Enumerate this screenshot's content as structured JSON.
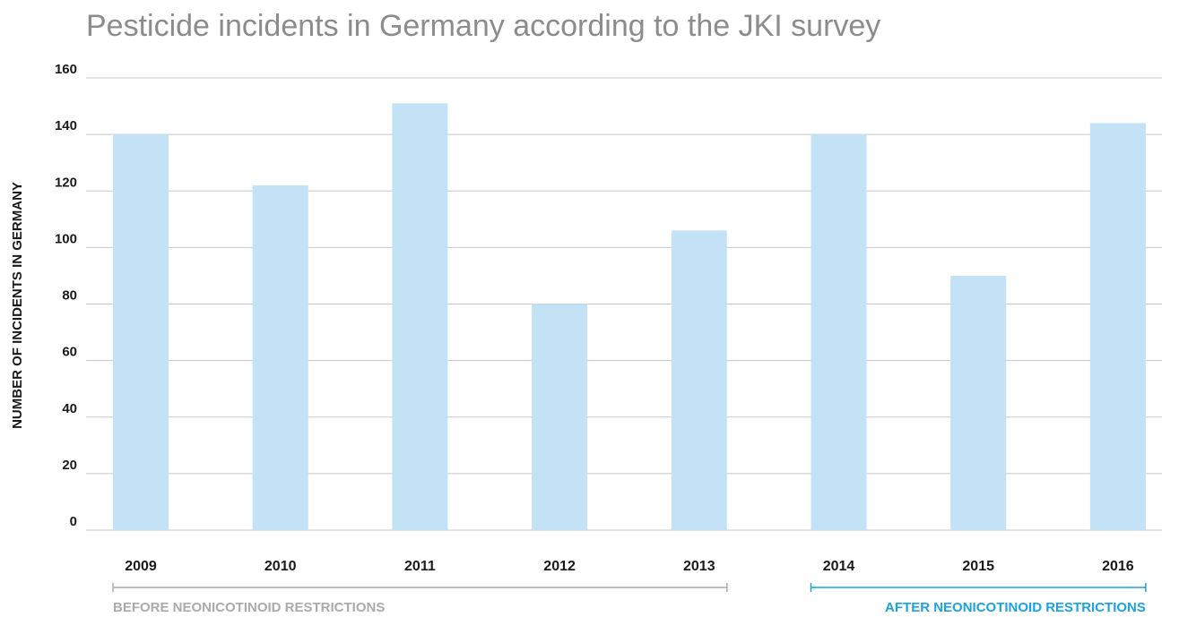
{
  "chart_data": {
    "type": "bar",
    "title": "Pesticide incidents in Germany according to the JKI survey",
    "xlabel": "",
    "ylabel": "NUMBER OF INCIDENTS IN GERMANY",
    "categories": [
      "2009",
      "2010",
      "2011",
      "2012",
      "2013",
      "2014",
      "2015",
      "2016"
    ],
    "values": [
      140,
      122,
      151,
      80,
      106,
      140,
      90,
      144
    ],
    "ylim": [
      0,
      160
    ],
    "yticks": [
      0,
      20,
      40,
      60,
      80,
      100,
      120,
      140,
      160
    ],
    "grid": true,
    "bar_color": "#c3e2f5",
    "grid_color": "#c8c8c8",
    "periods": [
      {
        "label": "BEFORE NEONICOTINOID RESTRICTIONS",
        "start_category": "2009",
        "end_category": "2013",
        "color": "#aaaaaa"
      },
      {
        "label": "AFTER NEONICOTINOID RESTRICTIONS",
        "start_category": "2014",
        "end_category": "2016",
        "color": "#1aa3e0"
      }
    ]
  }
}
